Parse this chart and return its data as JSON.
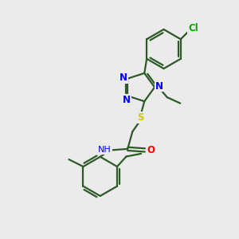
{
  "background_color": "#ebebeb",
  "bond_color": "#2d5a27",
  "atom_colors": {
    "N": "#0000ff",
    "O": "#ff0000",
    "S": "#cccc00",
    "Cl": "#00aa00",
    "H": "#555555",
    "C": "#2d5a27"
  },
  "bond_width": 1.6,
  "dbo": 0.12,
  "figsize": [
    3.0,
    3.0
  ],
  "dpi": 100
}
